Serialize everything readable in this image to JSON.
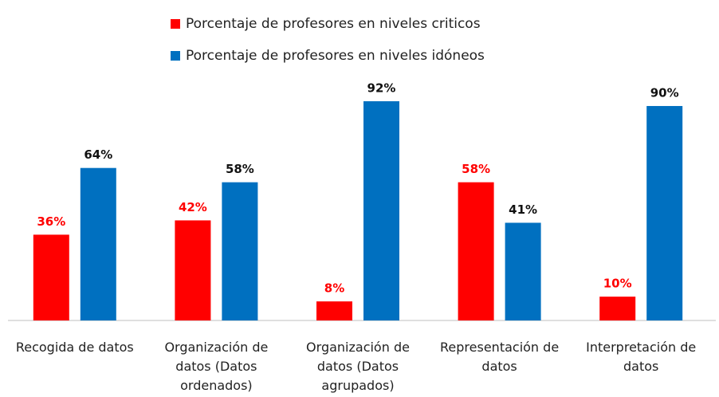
{
  "chart_data": {
    "type": "bar",
    "categories": [
      "Recogida de datos",
      "Organización de datos (Datos ordenados)",
      "Organización de datos (Datos agrupados)",
      "Representación de datos",
      "Interpretación de datos"
    ],
    "series": [
      {
        "name": "Porcentaje de profesores en niveles criticos",
        "color": "#ff0000",
        "values": [
          36,
          42,
          8,
          58,
          10
        ],
        "value_labels": [
          "36%",
          "42%",
          "8%",
          "58%",
          "10%"
        ]
      },
      {
        "name": "Porcentaje de profesores en niveles idóneos",
        "color": "#0070c0",
        "values": [
          64,
          58,
          92,
          41,
          90
        ],
        "value_labels": [
          "64%",
          "58%",
          "92%",
          "41%",
          "90%"
        ]
      }
    ],
    "legend": "top"
  }
}
